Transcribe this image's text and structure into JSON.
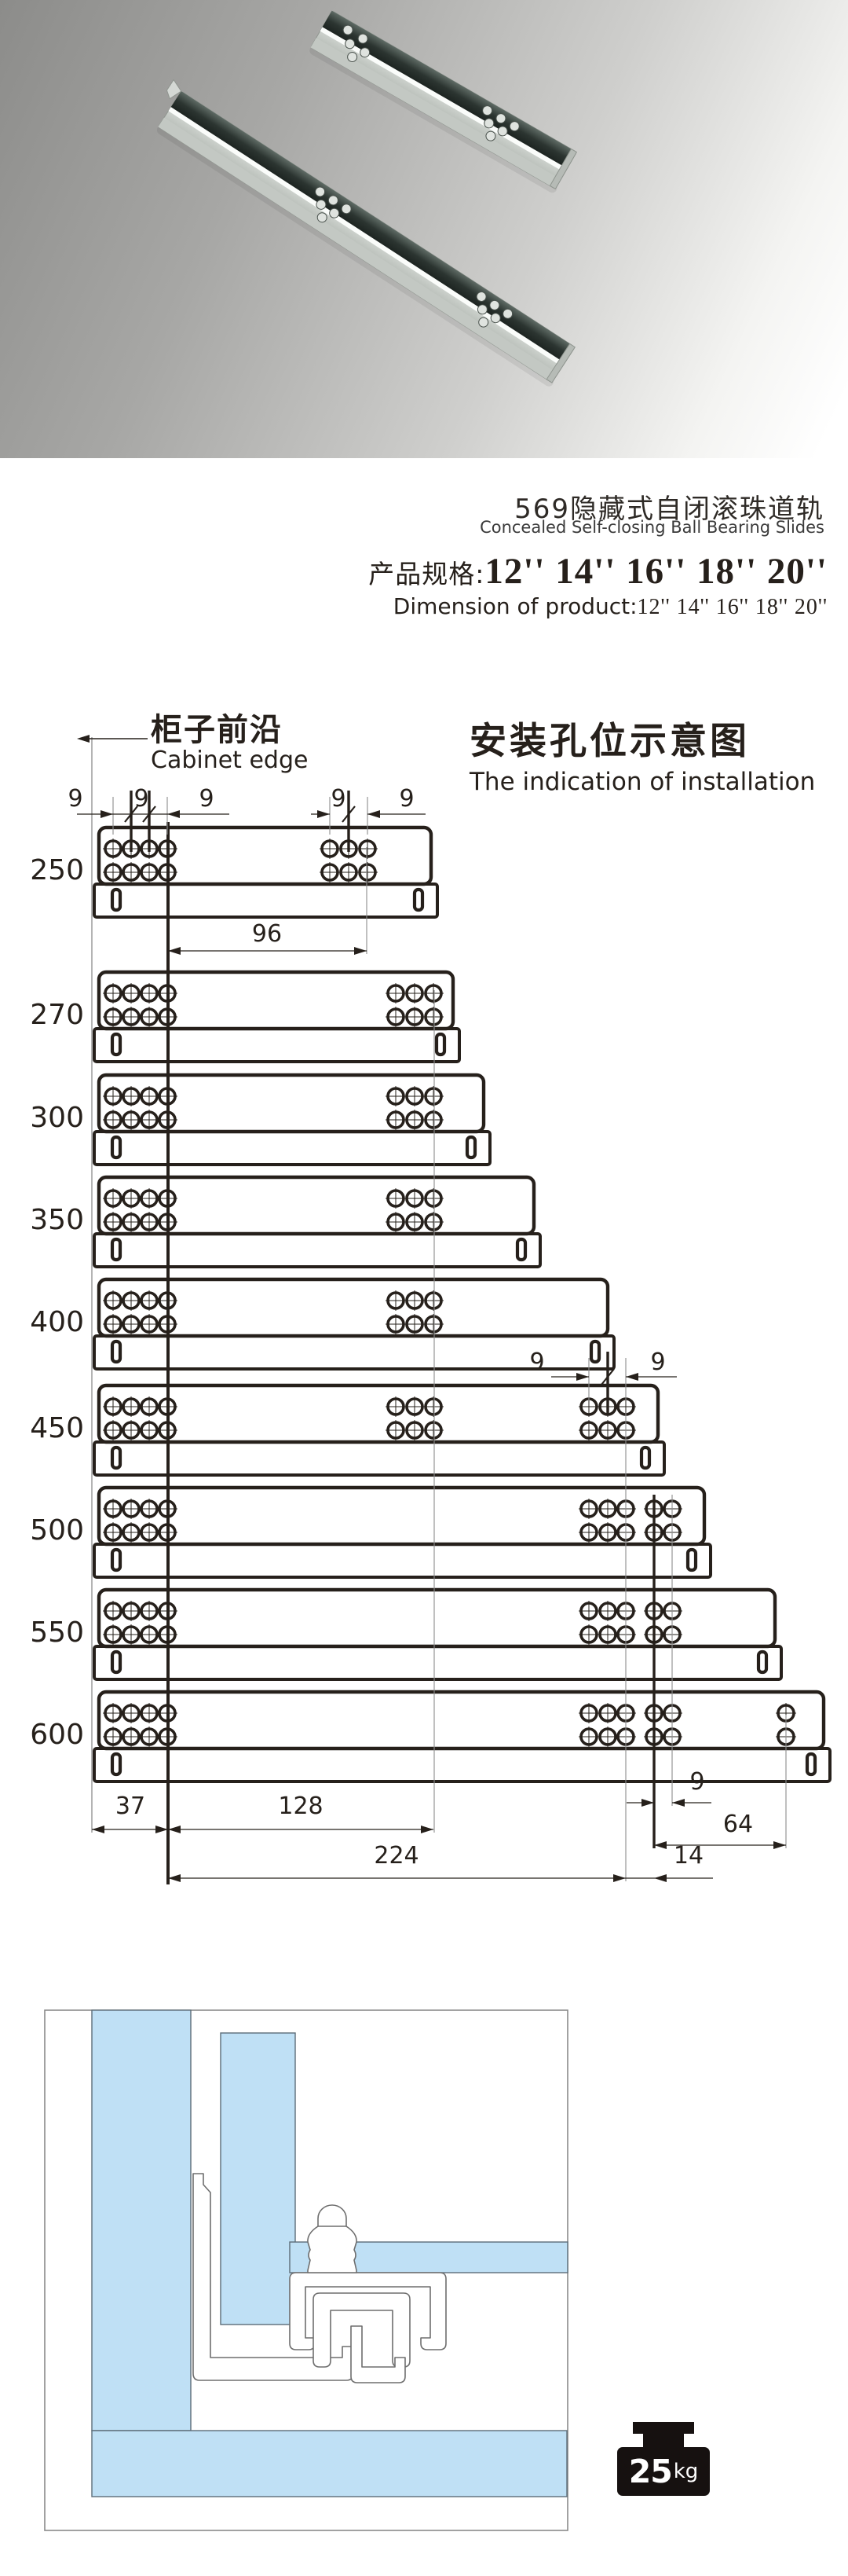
{
  "title": {
    "cn": "569隐藏式自闭滚珠道轨",
    "en": "Concealed Self-closing Ball Bearing Slides"
  },
  "spec": {
    "label_cn": "产品规格:",
    "label_en": "Dimension of product:",
    "sizes": "12'' 14'' 16'' 18'' 20''"
  },
  "installation": {
    "cabinet_edge_cn": "柜子前沿",
    "cabinet_edge_en": "Cabinet edge",
    "title_cn": "安装孔位示意图",
    "title_en": "The indication of installation"
  },
  "load_badge": {
    "value": "25",
    "unit": "kg"
  },
  "colors": {
    "panel_blue": "#bfe0f5",
    "line_dark": "#26201b",
    "ref_gray": "#8d8d8d",
    "badge_black": "#161110"
  },
  "diagram": {
    "row_labels": [
      "250",
      "270",
      "300",
      "350",
      "400",
      "450",
      "500",
      "550",
      "600"
    ],
    "row_body_right": [
      549,
      577,
      616,
      680,
      774,
      838,
      897,
      987,
      1049
    ],
    "row_groups": [
      [
        "left",
        "g96"
      ],
      [
        "left",
        "g128"
      ],
      [
        "left",
        "g128"
      ],
      [
        "left",
        "g128"
      ],
      [
        "left",
        "g128"
      ],
      [
        "left",
        "g128",
        "g224"
      ],
      [
        "left",
        "g224",
        "g14"
      ],
      [
        "left",
        "g224",
        "g14"
      ],
      [
        "left",
        "g224",
        "g14",
        "g64"
      ]
    ],
    "dims": {
      "top_left": [
        "9",
        "9",
        "9"
      ],
      "top_right": [
        "9",
        "9"
      ],
      "mid": [
        "9",
        "9"
      ],
      "d96": "96",
      "d37": "37",
      "d128": "128",
      "d9": "9",
      "d64": "64",
      "d224": "224",
      "d14": "14"
    }
  }
}
